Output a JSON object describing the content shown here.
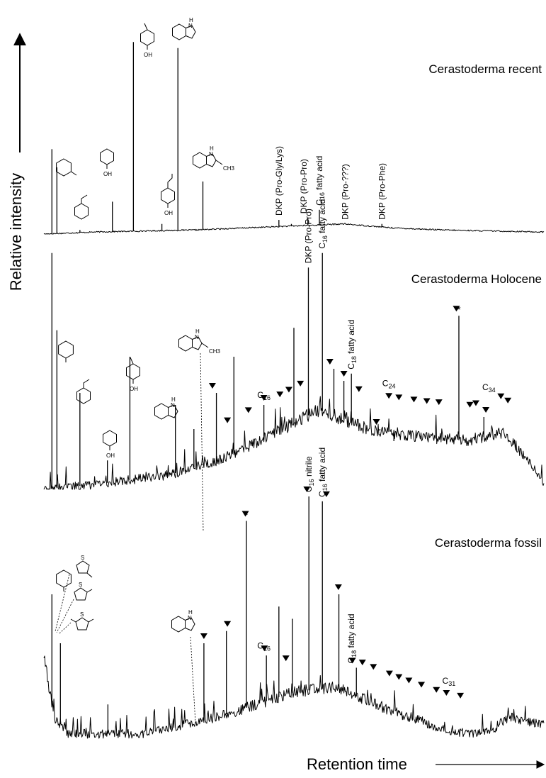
{
  "chart_data": {
    "type": "line",
    "ylabel": "Relative intensity",
    "xlabel": "Retention time",
    "grid": false,
    "panels": [
      {
        "name": "Cerastoderma recent",
        "baseline": [
          [
            0,
            0
          ],
          [
            0.1,
            0.01
          ],
          [
            0.3,
            0.02
          ],
          [
            0.5,
            0.04
          ],
          [
            0.6,
            0.05
          ],
          [
            0.7,
            0.03
          ],
          [
            0.8,
            0.02
          ],
          [
            1,
            0.01
          ]
        ],
        "peaks": [
          {
            "x": 0.016,
            "h": 0.42
          },
          {
            "x": 0.026,
            "h": 0.33
          },
          {
            "x": 0.072,
            "h": 0.02
          },
          {
            "x": 0.137,
            "h": 0.16
          },
          {
            "x": 0.179,
            "h": 0.95
          },
          {
            "x": 0.236,
            "h": 0.05
          },
          {
            "x": 0.268,
            "h": 0.92
          },
          {
            "x": 0.318,
            "h": 0.26
          },
          {
            "x": 0.47,
            "h": 0.07
          },
          {
            "x": 0.495,
            "h": 0.05
          },
          {
            "x": 0.528,
            "h": 0.08
          },
          {
            "x": 0.551,
            "h": 0.12
          },
          {
            "x": 0.603,
            "h": 0.05
          },
          {
            "x": 0.676,
            "h": 0.05
          }
        ],
        "peak_labels": [
          {
            "x": 0.47,
            "text": "DKP (Pro-Gly/Lys)"
          },
          {
            "x": 0.52,
            "text": "DKP (Pro-Pro)"
          },
          {
            "x": 0.551,
            "text": "fatty acid",
            "sub": "16"
          },
          {
            "x": 0.603,
            "text": "DKP (Pro-???)"
          },
          {
            "x": 0.676,
            "text": "DKP (Pro-Phe)"
          }
        ]
      },
      {
        "name": "Cerastoderma Holocene",
        "baseline": [
          [
            0,
            0
          ],
          [
            0.1,
            0.02
          ],
          [
            0.25,
            0.06
          ],
          [
            0.35,
            0.12
          ],
          [
            0.45,
            0.22
          ],
          [
            0.55,
            0.33
          ],
          [
            0.65,
            0.25
          ],
          [
            0.75,
            0.22
          ],
          [
            0.85,
            0.2
          ],
          [
            0.92,
            0.24
          ],
          [
            1,
            0.03
          ]
        ],
        "peaks": [
          {
            "x": 0.016,
            "h": 0.98
          },
          {
            "x": 0.026,
            "h": 0.66
          },
          {
            "x": 0.072,
            "h": 0.4
          },
          {
            "x": 0.127,
            "h": 0.12
          },
          {
            "x": 0.172,
            "h": 0.55
          },
          {
            "x": 0.263,
            "h": 0.35
          },
          {
            "x": 0.3,
            "h": 0.25
          },
          {
            "x": 0.345,
            "h": 0.4
          },
          {
            "x": 0.38,
            "h": 0.55
          },
          {
            "x": 0.44,
            "h": 0.35
          },
          {
            "x": 0.5,
            "h": 0.67
          },
          {
            "x": 0.529,
            "h": 0.92
          },
          {
            "x": 0.557,
            "h": 0.98
          },
          {
            "x": 0.58,
            "h": 0.5
          },
          {
            "x": 0.6,
            "h": 0.45
          },
          {
            "x": 0.615,
            "h": 0.48
          },
          {
            "x": 0.672,
            "h": 0.25
          },
          {
            "x": 0.7,
            "h": 0.2
          },
          {
            "x": 0.83,
            "h": 0.72
          },
          {
            "x": 0.88,
            "h": 0.3
          }
        ],
        "peak_labels": [
          {
            "x": 0.529,
            "text": "DKP (Pro-Pro)"
          },
          {
            "x": 0.557,
            "text": "fatty acid",
            "sub": "16"
          },
          {
            "x": 0.615,
            "text": "fatty acid",
            "sub": "18"
          }
        ],
        "annotations": [
          {
            "x": 0.44,
            "text": "C",
            "sub": "16"
          },
          {
            "x": 0.69,
            "text": "C",
            "sub": "24"
          },
          {
            "x": 0.89,
            "text": "C",
            "sub": "34"
          },
          {
            "x": 0.83,
            "text": "*"
          }
        ],
        "triangles": [
          0.337,
          0.367,
          0.409,
          0.44,
          0.472,
          0.49,
          0.513,
          0.572,
          0.6,
          0.63,
          0.665,
          0.69,
          0.71,
          0.74,
          0.7658,
          0.79,
          0.825,
          0.852,
          0.864,
          0.884,
          0.914,
          0.928
        ]
      },
      {
        "name": "Cerastoderma fossil",
        "baseline": [
          [
            0,
            0.35
          ],
          [
            0.02,
            0.1
          ],
          [
            0.05,
            0.03
          ],
          [
            0.2,
            0.03
          ],
          [
            0.35,
            0.1
          ],
          [
            0.5,
            0.2
          ],
          [
            0.58,
            0.22
          ],
          [
            0.7,
            0.12
          ],
          [
            0.8,
            0.05
          ],
          [
            0.85,
            0.03
          ],
          [
            0.9,
            0.05
          ],
          [
            0.93,
            0.1
          ],
          [
            0.97,
            0.08
          ],
          [
            1,
            0.07
          ]
        ],
        "peaks": [
          {
            "x": 0.016,
            "h": 0.6
          },
          {
            "x": 0.033,
            "h": 0.4
          },
          {
            "x": 0.128,
            "h": 0.15
          },
          {
            "x": 0.32,
            "h": 0.4
          },
          {
            "x": 0.365,
            "h": 0.45
          },
          {
            "x": 0.405,
            "h": 0.9
          },
          {
            "x": 0.445,
            "h": 0.35
          },
          {
            "x": 0.47,
            "h": 0.55
          },
          {
            "x": 0.497,
            "h": 0.5
          },
          {
            "x": 0.53,
            "h": 1.0
          },
          {
            "x": 0.557,
            "h": 0.98
          },
          {
            "x": 0.59,
            "h": 0.6
          },
          {
            "x": 0.625,
            "h": 0.3
          }
        ],
        "peak_labels": [
          {
            "x": 0.53,
            "text": "nitrile",
            "sub": "16"
          },
          {
            "x": 0.557,
            "text": "fatty acid",
            "sub": "16"
          },
          {
            "x": 0.615,
            "text": "fatty acid",
            "sub": "18"
          }
        ],
        "annotations": [
          {
            "x": 0.44,
            "text": "C",
            "sub": "16"
          },
          {
            "x": 0.81,
            "text": "C",
            "sub": "31"
          },
          {
            "x": 0.405,
            "text": "*"
          }
        ],
        "triangles": [
          0.32,
          0.367,
          0.403,
          0.441,
          0.484,
          0.526,
          0.565,
          0.589,
          0.617,
          0.637,
          0.659,
          0.691,
          0.71,
          0.73,
          0.755,
          0.785,
          0.805,
          0.833
        ]
      }
    ]
  }
}
